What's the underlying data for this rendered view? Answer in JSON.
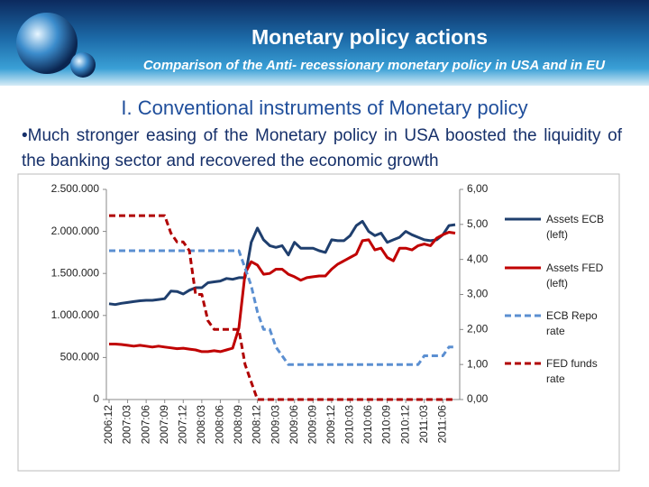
{
  "header": {
    "title": "Monetary policy actions",
    "subtitle": "Comparison of the Anti- recessionary monetary policy in USA and in EU"
  },
  "heading": "I. Conventional instruments of Monetary policy",
  "bullet": "•Much stronger easing of the Monetary policy in USA boosted the liquidity of the banking sector and recovered the economic growth",
  "chart_data": {
    "type": "line",
    "categories": [
      "2006:12",
      null,
      null,
      "2007:03",
      null,
      null,
      "2007:06",
      null,
      null,
      "2007:09",
      null,
      null,
      "2007:12",
      null,
      null,
      "2008:03",
      null,
      null,
      "2008:06",
      null,
      null,
      "2008:09",
      null,
      null,
      "2008:12",
      null,
      null,
      "2009:03",
      null,
      null,
      "2009:06",
      null,
      null,
      "2009:09",
      null,
      null,
      "2009:12",
      null,
      null,
      "2010:03",
      null,
      null,
      "2010:06",
      null,
      null,
      "2010:09",
      null,
      null,
      "2010:12",
      null,
      null,
      "2011:03",
      null,
      null,
      "2011:06",
      null,
      null
    ],
    "series": [
      {
        "name": "Assets ECB (left)",
        "color": "#1f3f6e",
        "style": "solid",
        "values": [
          1140000,
          1130000,
          1145000,
          1155000,
          1165000,
          1175000,
          1180000,
          1180000,
          1190000,
          1200000,
          1290000,
          1285000,
          1255000,
          1300000,
          1330000,
          1330000,
          1390000,
          1400000,
          1410000,
          1440000,
          1430000,
          1450000,
          1450000,
          1870000,
          2040000,
          1900000,
          1830000,
          1810000,
          1830000,
          1720000,
          1870000,
          1800000,
          1800000,
          1800000,
          1770000,
          1750000,
          1900000,
          1890000,
          1890000,
          1950000,
          2070000,
          2120000,
          2000000,
          1950000,
          1980000,
          1870000,
          1900000,
          1930000,
          2000000,
          1960000,
          1930000,
          1900000,
          1890000,
          1900000,
          1960000,
          2070000,
          2080000
        ]
      },
      {
        "name": "Assets FED (left)",
        "color": "#c00000",
        "style": "solid",
        "values": [
          660000,
          660000,
          655000,
          645000,
          635000,
          645000,
          635000,
          625000,
          635000,
          625000,
          615000,
          605000,
          610000,
          600000,
          590000,
          570000,
          570000,
          580000,
          570000,
          590000,
          610000,
          850000,
          1500000,
          1640000,
          1600000,
          1490000,
          1500000,
          1550000,
          1550000,
          1490000,
          1460000,
          1420000,
          1450000,
          1460000,
          1470000,
          1470000,
          1550000,
          1610000,
          1650000,
          1690000,
          1730000,
          1890000,
          1900000,
          1780000,
          1800000,
          1690000,
          1650000,
          1800000,
          1800000,
          1780000,
          1830000,
          1850000,
          1830000,
          1920000,
          1960000,
          1990000,
          1980000
        ]
      },
      {
        "name": "ECB Repo rate",
        "color": "#5b8fd1",
        "style": "dashed",
        "axis": "y2",
        "values": [
          4.25,
          4.25,
          4.25,
          4.25,
          4.25,
          4.25,
          4.25,
          4.25,
          4.25,
          4.25,
          4.25,
          4.25,
          4.25,
          4.25,
          4.25,
          4.25,
          4.25,
          4.25,
          4.25,
          4.25,
          4.25,
          4.25,
          3.75,
          3.25,
          2.5,
          2.0,
          2.0,
          1.5,
          1.25,
          1.0,
          1.0,
          1.0,
          1.0,
          1.0,
          1.0,
          1.0,
          1.0,
          1.0,
          1.0,
          1.0,
          1.0,
          1.0,
          1.0,
          1.0,
          1.0,
          1.0,
          1.0,
          1.0,
          1.0,
          1.0,
          1.0,
          1.25,
          1.25,
          1.25,
          1.25,
          1.5,
          1.5
        ]
      },
      {
        "name": "FED funds rate",
        "color": "#b00000",
        "style": "dashed",
        "axis": "y2",
        "values": [
          5.25,
          5.25,
          5.25,
          5.25,
          5.25,
          5.25,
          5.25,
          5.25,
          5.25,
          5.25,
          4.75,
          4.5,
          4.5,
          4.25,
          3.0,
          3.0,
          2.25,
          2.0,
          2.0,
          2.0,
          2.0,
          2.0,
          1.0,
          0.5,
          0,
          0,
          0,
          0,
          0,
          0,
          0,
          0,
          0,
          0,
          0,
          0,
          0,
          0,
          0,
          0,
          0,
          0,
          0,
          0,
          0,
          0,
          0,
          0,
          0,
          0,
          0,
          0,
          0,
          0,
          0,
          0,
          0
        ]
      }
    ],
    "ylim": [
      0,
      2500000
    ],
    "yticks": [
      0,
      {
        "value": 500000,
        "label": "500.000"
      },
      {
        "value": 1000000,
        "label": "1.000.000"
      },
      {
        "value": 1500000,
        "label": "1.500.000"
      },
      {
        "value": 2000000,
        "label": "2.000.000"
      },
      {
        "value": 2500000,
        "label": "2.500.000"
      }
    ],
    "y2lim": [
      0,
      6
    ],
    "y2ticks": [
      {
        "value": 0,
        "label": "0,00"
      },
      {
        "value": 1,
        "label": "1,00"
      },
      {
        "value": 2,
        "label": "2,00"
      },
      {
        "value": 3,
        "label": "3,00"
      },
      {
        "value": 4,
        "label": "4,00"
      },
      {
        "value": 5,
        "label": "5,00"
      },
      {
        "value": 6,
        "label": "6,00"
      }
    ]
  }
}
